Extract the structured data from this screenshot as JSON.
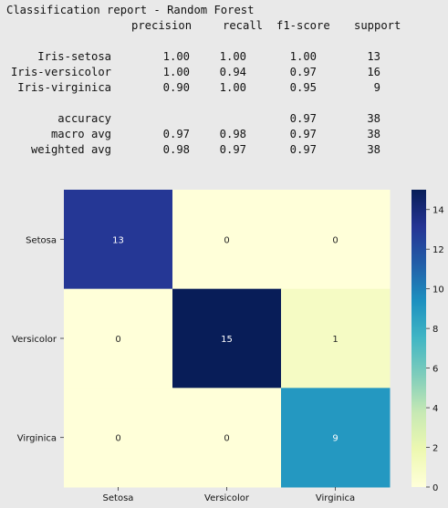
{
  "report": {
    "title": "Classification report - Random Forest",
    "headers": [
      "precision",
      "recall",
      "f1-score",
      "support"
    ],
    "rows": [
      {
        "label": "Iris-setosa",
        "values": [
          "1.00",
          "1.00",
          "1.00",
          "13"
        ]
      },
      {
        "label": "Iris-versicolor",
        "values": [
          "1.00",
          "0.94",
          "0.97",
          "16"
        ]
      },
      {
        "label": "Iris-virginica",
        "values": [
          "0.90",
          "1.00",
          "0.95",
          "9"
        ]
      }
    ],
    "summary": [
      {
        "label": "accuracy",
        "values": [
          "",
          "",
          "0.97",
          "38"
        ]
      },
      {
        "label": "macro avg",
        "values": [
          "0.97",
          "0.98",
          "0.97",
          "38"
        ]
      },
      {
        "label": "weighted avg",
        "values": [
          "0.98",
          "0.97",
          "0.97",
          "38"
        ]
      }
    ]
  },
  "chart_data": {
    "type": "heatmap",
    "title": "",
    "xlabel": "",
    "ylabel": "",
    "x_categories": [
      "Setosa",
      "Versicolor",
      "Virginica"
    ],
    "y_categories": [
      "Setosa",
      "Versicolor",
      "Virginica"
    ],
    "values": [
      [
        13,
        0,
        0
      ],
      [
        0,
        15,
        1
      ],
      [
        0,
        0,
        9
      ]
    ],
    "colormap": "YlGnBu",
    "colorbar": {
      "range": [
        0,
        15
      ],
      "ticks": [
        "0",
        "2",
        "4",
        "6",
        "8",
        "10",
        "12",
        "14"
      ]
    },
    "grid": false,
    "legend": "colorbar-right"
  }
}
